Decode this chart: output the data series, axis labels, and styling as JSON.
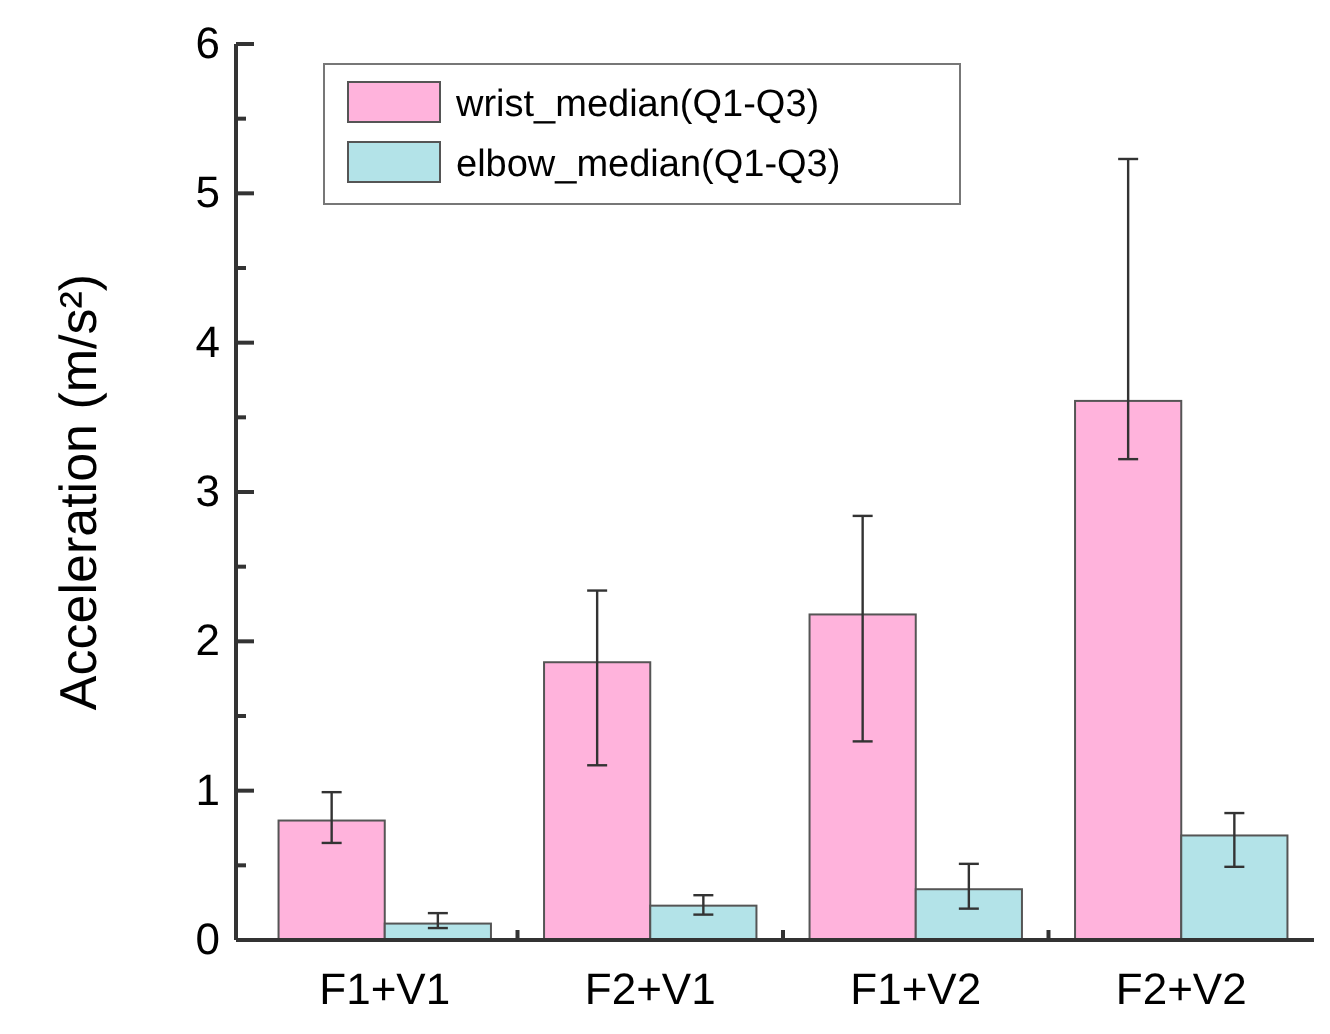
{
  "chart_data": {
    "type": "bar",
    "ylabel": "Acceleration (m/s²)",
    "categories": [
      "F1+V1",
      "F2+V1",
      "F1+V2",
      "F2+V2"
    ],
    "series": [
      {
        "name": "wrist_median(Q1-Q3)",
        "color": "#ffb3dc",
        "values": [
          0.8,
          1.86,
          2.18,
          3.61
        ],
        "errors": [
          [
            0.65,
            0.99
          ],
          [
            1.17,
            2.34
          ],
          [
            1.33,
            2.84
          ],
          [
            3.22,
            5.23
          ]
        ]
      },
      {
        "name": "elbow_median(Q1-Q3)",
        "color": "#b3e3e8",
        "values": [
          0.11,
          0.23,
          0.34,
          0.7
        ],
        "errors": [
          [
            0.08,
            0.18
          ],
          [
            0.17,
            0.3
          ],
          [
            0.21,
            0.51
          ],
          [
            0.49,
            0.85
          ]
        ]
      }
    ],
    "ylim": [
      0,
      6
    ],
    "yticks": [
      0,
      {
        "value": 0.5,
        "label": null
      },
      1,
      {
        "value": 1.5,
        "label": null
      },
      2,
      {
        "value": 2.5,
        "label": null
      },
      3,
      {
        "value": 3.5,
        "label": null
      },
      4,
      {
        "value": 4.5,
        "label": null
      },
      5,
      {
        "value": 5.5,
        "label": null
      },
      6
    ],
    "legend": "top"
  }
}
